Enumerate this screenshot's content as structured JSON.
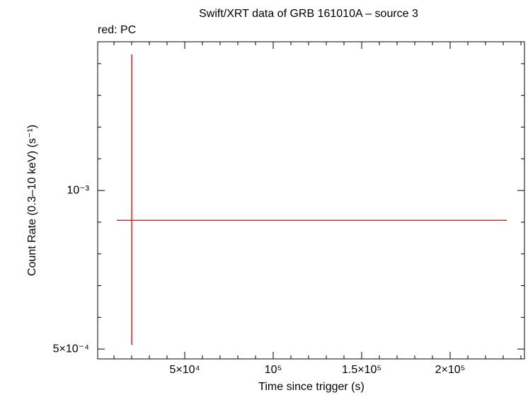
{
  "chart_data": {
    "type": "errorbar",
    "title": "Swift/XRT data of GRB 161010A – source 3",
    "subtitle": "red: PC",
    "x_label": "Time since trigger (s)",
    "y_label": "Count Rate (0.3–10 keV) (s⁻¹)",
    "series": [
      {
        "name": "PC",
        "color": "#e8232a",
        "x": [
          20000
        ],
        "values": [
          0.000906
        ],
        "x_err_minus": [
          8400
        ],
        "x_err_plus": [
          212000
        ],
        "y_err_minus": [
          0.000393
        ],
        "y_err_plus": [
          0.000523
        ]
      }
    ],
    "xlim": [
      800,
      242000
    ],
    "ylim": [
      0.000469,
      0.001469
    ],
    "xticks": [
      {
        "value": 50000,
        "label": "5×10⁴"
      },
      {
        "value": 100000,
        "label": "10⁵"
      },
      {
        "value": 150000,
        "label": "1.5×10⁵"
      },
      {
        "value": 200000,
        "label": "2×10⁵"
      }
    ],
    "yticks": [
      {
        "value": 0.0005,
        "label": "5×10⁻⁴"
      },
      {
        "value": 0.001,
        "label": "10⁻³"
      }
    ],
    "x_minor_ticks": [
      10000,
      20000,
      30000,
      40000,
      60000,
      70000,
      80000,
      90000,
      110000,
      120000,
      130000,
      140000,
      160000,
      170000,
      180000,
      190000,
      210000,
      220000,
      230000,
      240000
    ],
    "y_minor_ticks": [
      0.0006,
      0.0007,
      0.0008,
      0.0009,
      0.0011,
      0.0012,
      0.0013,
      0.0014
    ]
  }
}
